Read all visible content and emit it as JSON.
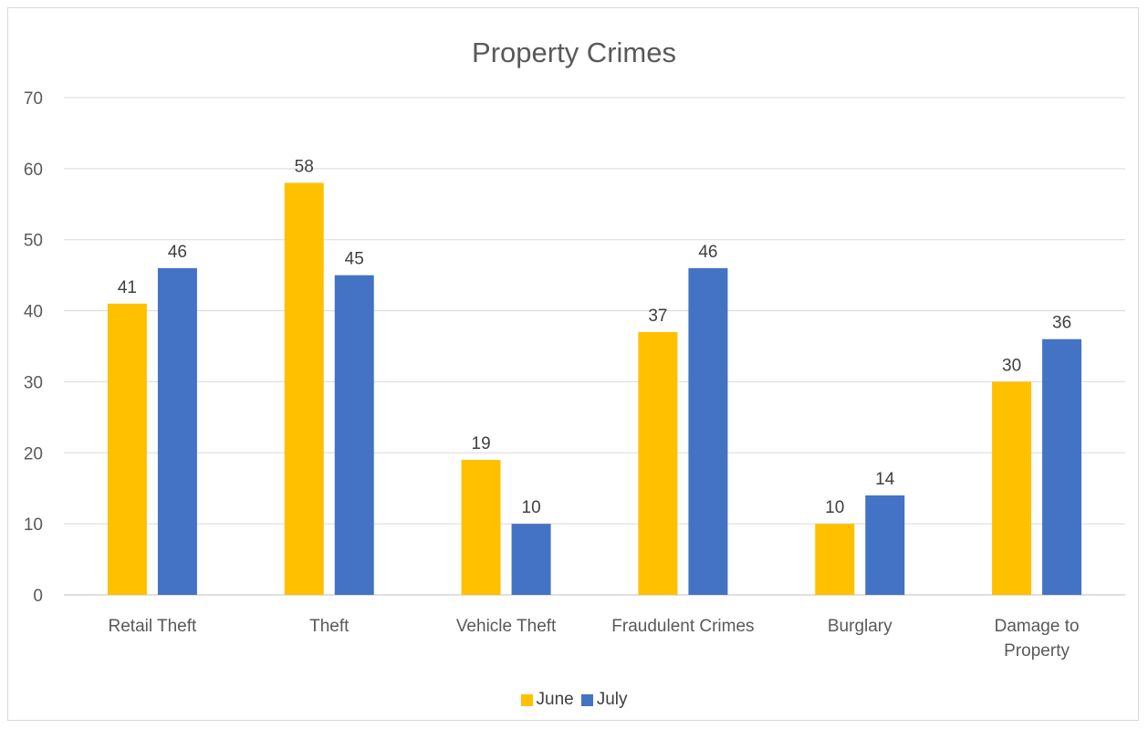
{
  "chart_data": {
    "type": "bar",
    "title": "Property Crimes",
    "categories": [
      "Retail Theft",
      "Theft",
      "Vehicle Theft",
      "Fraudulent Crimes",
      "Burglary",
      "Damage to Property"
    ],
    "category_lines": [
      [
        "Retail Theft"
      ],
      [
        "Theft"
      ],
      [
        "Vehicle Theft"
      ],
      [
        "Fraudulent Crimes"
      ],
      [
        "Burglary"
      ],
      [
        "Damage to",
        "Property"
      ]
    ],
    "series": [
      {
        "name": "June",
        "values": [
          41,
          58,
          19,
          37,
          10,
          30
        ],
        "color": "#FFC000"
      },
      {
        "name": "July",
        "values": [
          46,
          45,
          10,
          46,
          14,
          36
        ],
        "color": "#4472C4"
      }
    ],
    "ylim": [
      0,
      70
    ],
    "yticks": [
      "0",
      "10",
      "20",
      "30",
      "40",
      "50",
      "60",
      "70"
    ],
    "grid": true,
    "data_labels": true,
    "legend_position": "bottom"
  }
}
